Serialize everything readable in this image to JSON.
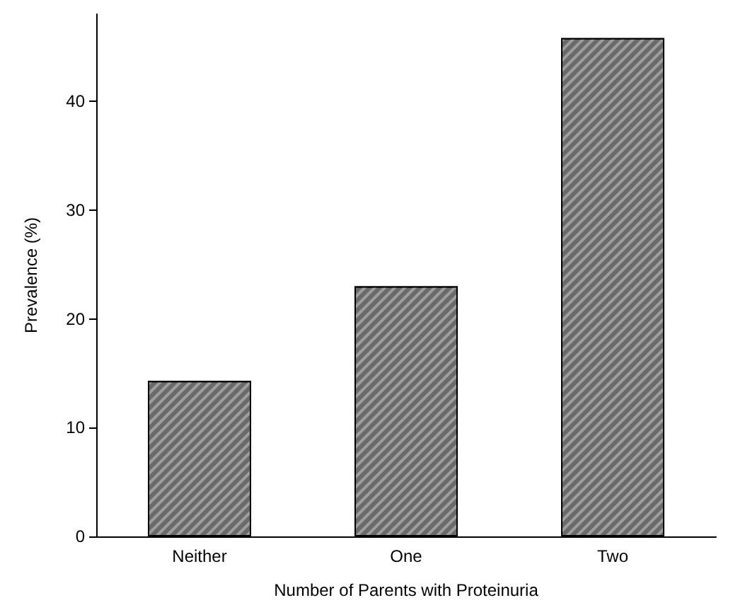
{
  "chart_data": {
    "type": "bar",
    "xlabel": "Number of Parents with Proteinuria",
    "ylabel": "Prevalence (%)",
    "categories": [
      "Neither",
      "One",
      "Two"
    ],
    "values": [
      14.3,
      23.0,
      45.8
    ],
    "color": "#6a6a6a",
    "ylim": [
      0,
      48
    ],
    "yticks": [
      0,
      10,
      20,
      30,
      40
    ],
    "grid": false
  }
}
